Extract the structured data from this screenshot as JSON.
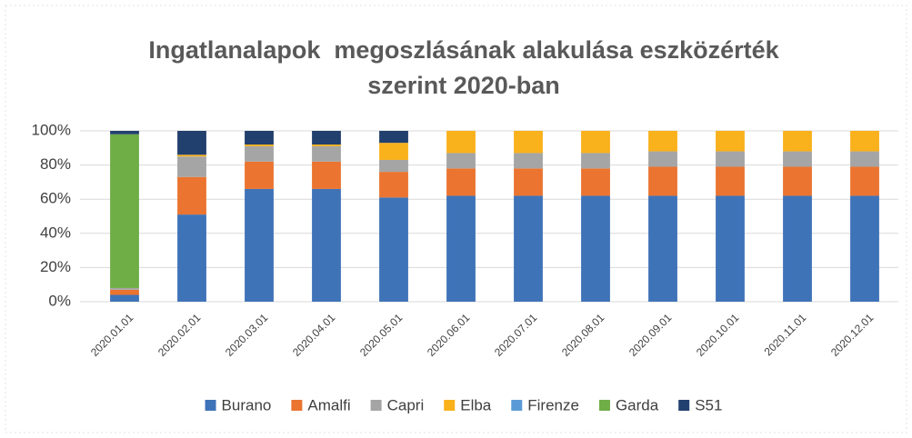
{
  "chart_data": {
    "type": "stacked_bar",
    "title": [
      "Ingatlanalapok  megoszlásának alakulása eszközérték",
      "szerint 2020-ban"
    ],
    "categories": [
      "2020.01.01",
      "2020.02.01",
      "2020.03.01",
      "2020.04.01",
      "2020.05.01",
      "2020.06.01",
      "2020.07.01",
      "2020.08.01",
      "2020.09.01",
      "2020.10.01",
      "2020.11.01",
      "2020.12.01"
    ],
    "series": [
      {
        "name": "Burano",
        "color": "#3f73b8",
        "values": [
          4,
          51,
          66,
          66,
          61,
          62,
          62,
          62,
          62,
          62,
          62,
          62
        ]
      },
      {
        "name": "Amalfi",
        "color": "#ea7430",
        "values": [
          3,
          22,
          16,
          16,
          15,
          16,
          16,
          16,
          17,
          17,
          17,
          17
        ]
      },
      {
        "name": "Capri",
        "color": "#a5a5a5",
        "values": [
          1,
          12,
          9,
          9,
          7,
          9,
          9,
          9,
          9,
          9,
          9,
          9
        ]
      },
      {
        "name": "Elba",
        "color": "#f9b11c",
        "values": [
          0,
          1,
          1,
          1,
          10,
          13,
          13,
          13,
          12,
          12,
          12,
          12
        ]
      },
      {
        "name": "Firenze",
        "color": "#5b9bd5",
        "values": [
          0,
          0,
          0,
          0,
          0,
          0,
          0,
          0,
          0,
          0,
          0,
          0
        ]
      },
      {
        "name": "Garda",
        "color": "#6fad47",
        "values": [
          90,
          0,
          0,
          0,
          0,
          0,
          0,
          0,
          0,
          0,
          0,
          0
        ]
      },
      {
        "name": "S51",
        "color": "#22406e",
        "values": [
          2,
          14,
          8,
          8,
          7,
          0,
          0,
          0,
          0,
          0,
          0,
          0
        ]
      }
    ],
    "ylim": [
      0,
      100
    ],
    "yticks": [
      {
        "value": 0,
        "label": "0%"
      },
      {
        "value": 20,
        "label": "20%"
      },
      {
        "value": 40,
        "label": "40%"
      },
      {
        "value": 60,
        "label": "60%"
      },
      {
        "value": 80,
        "label": "80%"
      },
      {
        "value": 100,
        "label": "100%"
      }
    ],
    "grid": true,
    "legend": "bottom"
  }
}
